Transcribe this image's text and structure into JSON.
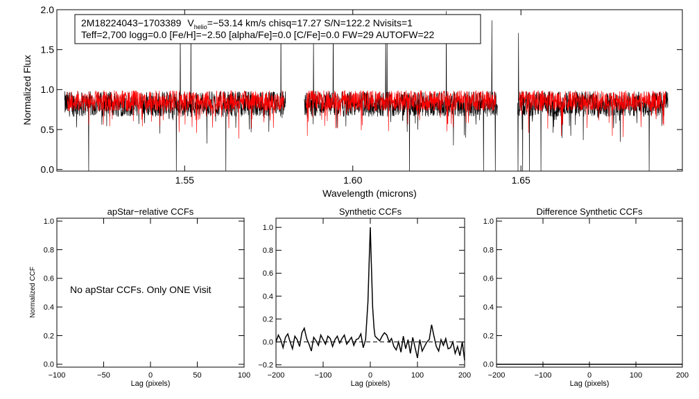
{
  "chart_data": [
    {
      "type": "line",
      "xlabel": "Wavelength (microns)",
      "ylabel": "Normalized Flux",
      "xlim": [
        1.512,
        1.698
      ],
      "ylim": [
        -0.02,
        2.0
      ],
      "xticks": [
        "1.55",
        "1.60",
        "1.65"
      ],
      "yticks": [
        "0.0",
        "0.5",
        "1.0",
        "1.5",
        "2.0"
      ],
      "annotation": {
        "line1_star": "2M18224043−1703389",
        "line1_v": "V",
        "line1_sub": "helio",
        "line1_rest": "=−53.14 km/s  chisq=17.27  S/N=122.2  Nvisits=1",
        "line2": "Teff=2,700 logg=0.0 [Fe/H]=−2.50 [alpha/Fe]=0.0 [C/Fe]=0.0 FW=29 AUTOFW=22"
      },
      "series": [
        {
          "color": "#000000",
          "segments": [
            [
              1.5143,
              1.58
            ],
            [
              1.5855,
              1.643
            ],
            [
              1.649,
              1.6937
            ]
          ],
          "base": 0.82,
          "noise": 0.16
        },
        {
          "color": "#ff0000",
          "segments": [
            [
              1.515,
              1.5795
            ],
            [
              1.586,
              1.6425
            ],
            [
              1.6495,
              1.693
            ]
          ],
          "base": 0.86,
          "noise": 0.13
        }
      ]
    },
    {
      "type": "line",
      "title": "apStar−relative CCFs",
      "xlabel": "Lag (pixels)",
      "ylabel": "Normalized CCF",
      "xlim": [
        -100,
        100
      ],
      "ylim": [
        -0.02,
        1.02
      ],
      "xticks": [
        "−100",
        "−50",
        "0",
        "50",
        "100"
      ],
      "yticks": [
        "0.0",
        "0.2",
        "0.4",
        "0.6",
        "0.8",
        "1.0"
      ],
      "note": "No apStar CCFs.  Only ONE Visit",
      "series": []
    },
    {
      "type": "line",
      "title": "Synthetic CCFs",
      "xlabel": "Lag (pixels)",
      "xlim": [
        -200,
        200
      ],
      "ylim": [
        -0.22,
        1.08
      ],
      "xticks": [
        "−200",
        "−100",
        "0",
        "100",
        "200"
      ],
      "yticks": [
        "−0.2",
        "0.0",
        "0.2",
        "0.4",
        "0.6",
        "0.8",
        "1.0"
      ],
      "reference_line": 0.0,
      "series": [
        {
          "x": [
            -200,
            -195,
            -190,
            -185,
            -180,
            -175,
            -170,
            -165,
            -160,
            -155,
            -150,
            -145,
            -140,
            -135,
            -130,
            -125,
            -120,
            -115,
            -110,
            -105,
            -100,
            -95,
            -90,
            -85,
            -80,
            -75,
            -70,
            -65,
            -60,
            -55,
            -50,
            -45,
            -40,
            -35,
            -30,
            -25,
            -20,
            -15,
            -10,
            -5,
            -2,
            0,
            2,
            5,
            8,
            10,
            15,
            20,
            25,
            30,
            35,
            40,
            45,
            50,
            55,
            60,
            65,
            70,
            75,
            80,
            85,
            90,
            95,
            100,
            105,
            110,
            115,
            120,
            125,
            130,
            135,
            140,
            145,
            150,
            155,
            160,
            165,
            170,
            175,
            180,
            185,
            190,
            195,
            200
          ],
          "y": [
            0.0,
            0.06,
            0.02,
            -0.05,
            0.04,
            0.07,
            0.0,
            -0.06,
            0.05,
            0.02,
            -0.04,
            0.08,
            0.12,
            0.03,
            -0.02,
            -0.08,
            0.04,
            0.01,
            -0.03,
            0.06,
            0.02,
            -0.02,
            0.05,
            0.03,
            -0.04,
            0.02,
            0.05,
            -0.01,
            0.03,
            0.06,
            -0.02,
            0.01,
            0.04,
            -0.03,
            0.02,
            0.03,
            0.07,
            -0.05,
            0.02,
            0.35,
            0.75,
            1.0,
            0.7,
            0.3,
            0.12,
            0.05,
            0.03,
            0.01,
            0.05,
            0.08,
            0.06,
            0.0,
            0.03,
            -0.04,
            -0.07,
            0.0,
            -0.09,
            0.05,
            -0.06,
            0.02,
            -0.1,
            0.04,
            -0.05,
            -0.14,
            0.02,
            -0.08,
            -0.04,
            0.0,
            0.02,
            0.15,
            0.05,
            -0.04,
            -0.08,
            0.02,
            -0.03,
            0.03,
            -0.06,
            -0.05,
            0.0,
            -0.1,
            -0.04,
            -0.12,
            0.0,
            -0.16
          ]
        }
      ]
    },
    {
      "type": "line",
      "title": "Difference Synthetic CCFs",
      "xlabel": "Lag (pixels)",
      "xlim": [
        -200,
        200
      ],
      "ylim": [
        -0.02,
        1.02
      ],
      "xticks": [
        "−200",
        "−100",
        "0",
        "100",
        "200"
      ],
      "yticks": [
        "0.0",
        "0.2",
        "0.4",
        "0.6",
        "0.8",
        "1.0"
      ],
      "series": [
        {
          "x": [
            -200,
            200
          ],
          "y": [
            0.0,
            0.0
          ]
        }
      ]
    }
  ]
}
